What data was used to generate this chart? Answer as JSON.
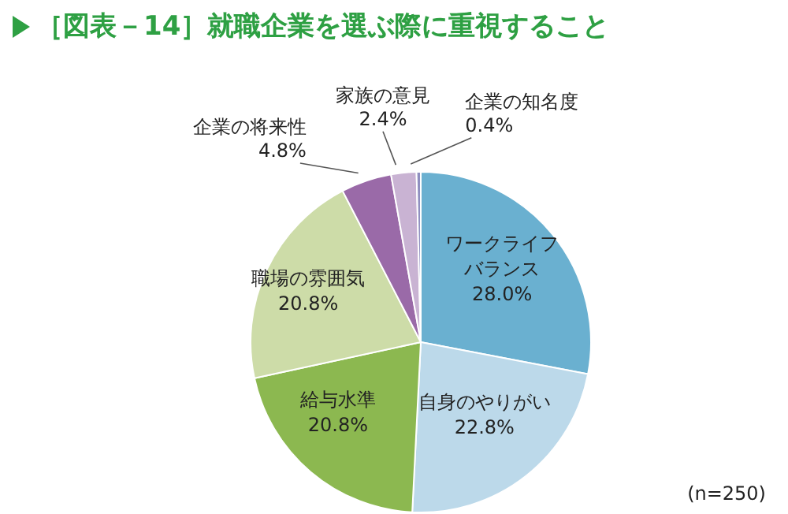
{
  "chart_data": {
    "type": "pie",
    "title": "［図表－14］就職企業を選ぶ際に重視すること",
    "categories": [
      "ワークライフバランス",
      "自身のやりがい",
      "給与水準",
      "職場の雰囲気",
      "企業の将来性",
      "家族の意見",
      "企業の知名度"
    ],
    "values": [
      28.0,
      22.8,
      20.8,
      20.8,
      4.8,
      2.4,
      0.4
    ],
    "value_labels": [
      "28.0%",
      "22.8%",
      "20.8%",
      "20.8%",
      "4.8%",
      "2.4%",
      "0.4%"
    ],
    "colors": [
      "#6ab0d0",
      "#bcd9ea",
      "#8cb850",
      "#cddca8",
      "#9a6aa8",
      "#c9b3d3",
      "#8f8fc0"
    ],
    "annotations": [
      "(n=250)"
    ]
  }
}
